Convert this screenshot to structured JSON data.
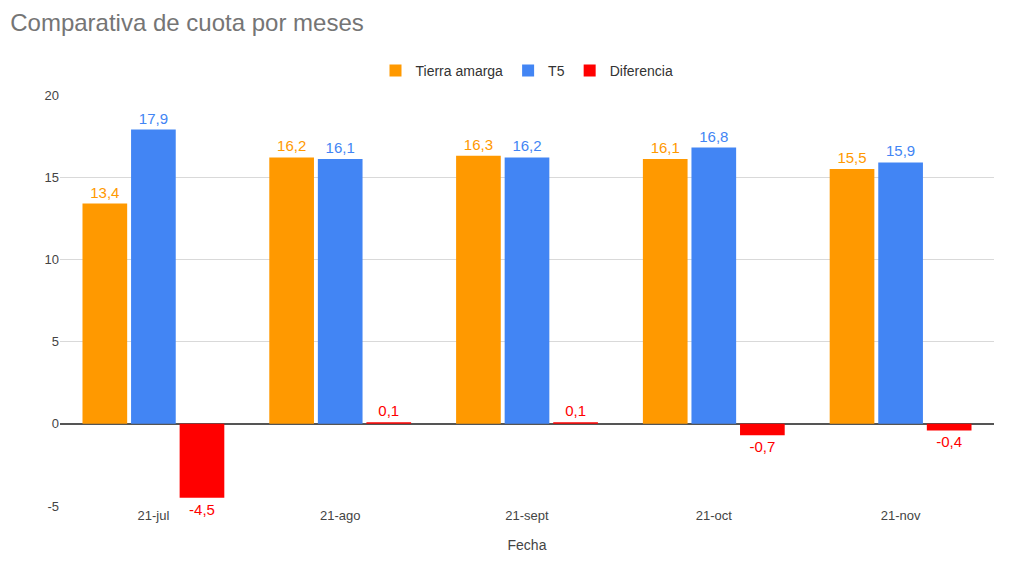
{
  "chart_data": {
    "type": "bar",
    "title": "Comparativa de cuota por meses",
    "x_label": "Fecha",
    "categories": [
      "21-jul",
      "21-ago",
      "21-sept",
      "21-oct",
      "21-nov"
    ],
    "series": [
      {
        "name": "Tierra amarga",
        "color": "#ff9900",
        "values": [
          13.4,
          16.2,
          16.3,
          16.1,
          15.5
        ],
        "value_labels": [
          "13,4",
          "16,2",
          "16,3",
          "16,1",
          "15,5"
        ]
      },
      {
        "name": "T5",
        "color": "#4285f4",
        "values": [
          17.9,
          16.1,
          16.2,
          16.8,
          15.9
        ],
        "value_labels": [
          "17,9",
          "16,1",
          "16,2",
          "16,8",
          "15,9"
        ]
      },
      {
        "name": "Diferencia",
        "color": "#ff0000",
        "values": [
          -4.5,
          0.1,
          0.1,
          -0.7,
          -0.4
        ],
        "value_labels": [
          "-4,5",
          "0,1",
          "0,1",
          "-0,7",
          "-0,4"
        ]
      }
    ],
    "ylim": [
      -5,
      20
    ],
    "yticks": [
      -5,
      0,
      5,
      10,
      15,
      20
    ],
    "grid": true,
    "legend": "top",
    "data_labels": true
  }
}
